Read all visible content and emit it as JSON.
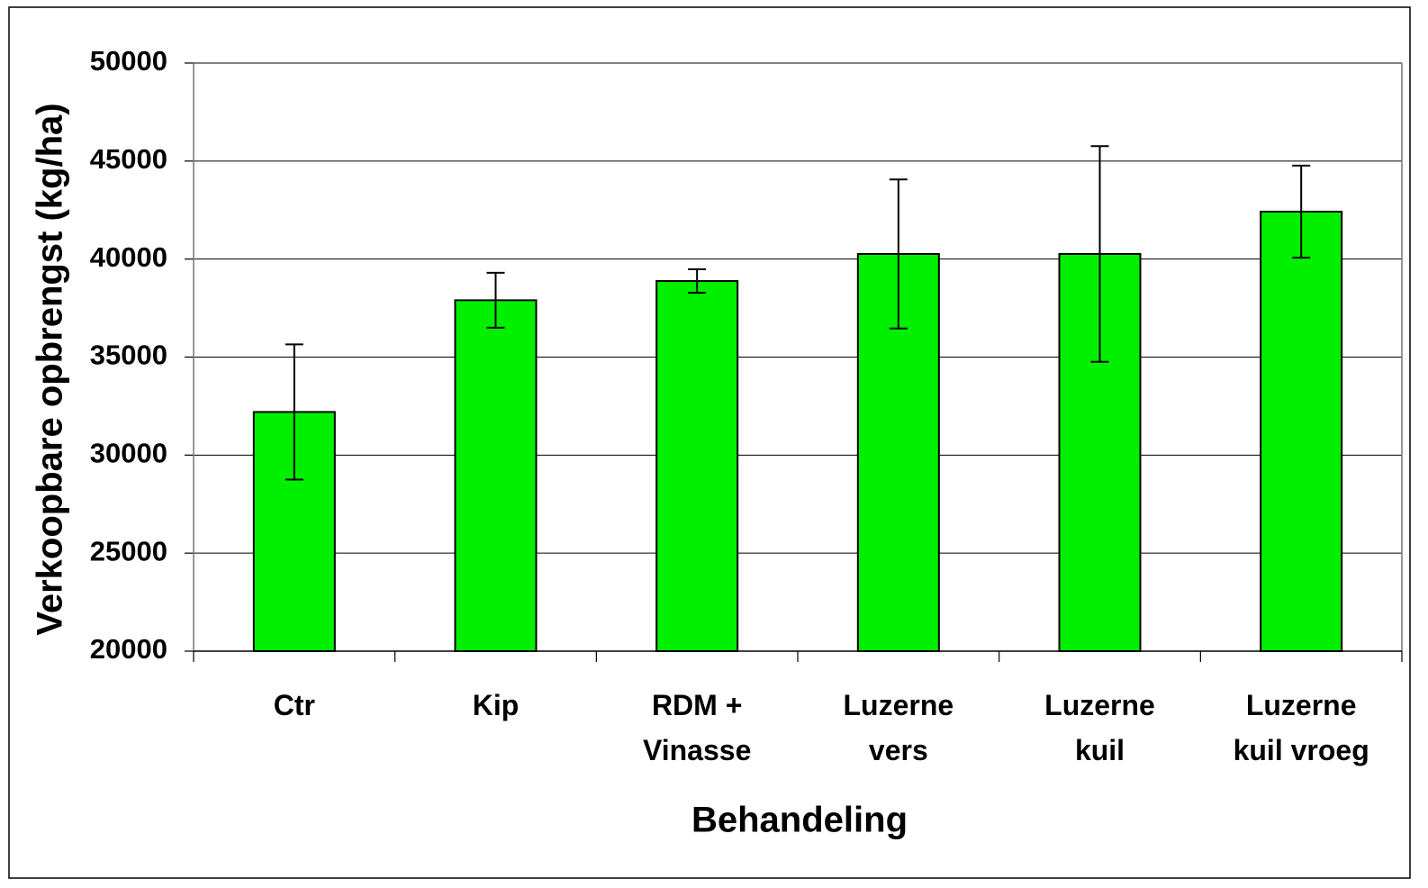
{
  "chart_data": {
    "type": "bar",
    "x_label": "Behandeling",
    "y_label": "Verkoopbare opbrengst (kg/ha)",
    "categories": [
      "Ctr",
      "Kip",
      "RDM +\nVinasse",
      "Luzerne\nvers",
      "Luzerne\nkuil",
      "Luzerne\nkuil vroeg"
    ],
    "values": [
      32200,
      37900,
      38880,
      40260,
      40260,
      42420
    ],
    "errors": [
      3450,
      1400,
      600,
      3800,
      5500,
      2350
    ],
    "color": "#00f000",
    "ylim": [
      20000,
      50000
    ],
    "yticks": [
      20000,
      25000,
      30000,
      35000,
      40000,
      45000,
      50000
    ],
    "grid": true
  }
}
